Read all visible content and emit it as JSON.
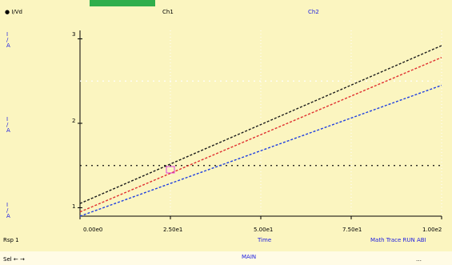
{
  "header": {
    "left_label": "● I/Vd",
    "mid_label_1": "Ch1",
    "mid_label_2": "Ch2"
  },
  "left_axis": {
    "top_label": "I\n/\nA",
    "mid_label": "I\n/\nA",
    "bottom_label": "I\n/\nA"
  },
  "y_ticks": [
    "3",
    "2",
    "1"
  ],
  "x_ticks": [
    "0.00e0",
    "2.50e1",
    "5.00e1",
    "7.50e1",
    "1.00e2"
  ],
  "footer": {
    "left_label": "Rsp 1",
    "center_label": "Time",
    "right_label": "Math Trace RUN ABI",
    "status_left": "Sel  ←  →",
    "status_center": "MAIN",
    "status_right": "…"
  },
  "chart_data": {
    "type": "line",
    "x": [
      0,
      100
    ],
    "series": [
      {
        "values": [
          1.05,
          2.92
        ],
        "color": "#1a1a1a",
        "dash": true
      },
      {
        "values": [
          0.95,
          2.78
        ],
        "color": "#e03030",
        "dash": true
      },
      {
        "values": [
          0.9,
          2.45
        ],
        "color": "#2040e0",
        "dash": true
      }
    ],
    "markers": [
      {
        "x": 25,
        "y": 1.45,
        "color": "#e040e0"
      }
    ],
    "ref_lines": [
      2.5,
      1.5
    ],
    "ylim": [
      0.9,
      3.1
    ],
    "grid": "dotted"
  },
  "colors": {
    "background": "#fbf5c0",
    "accent": "#2fae4c"
  }
}
